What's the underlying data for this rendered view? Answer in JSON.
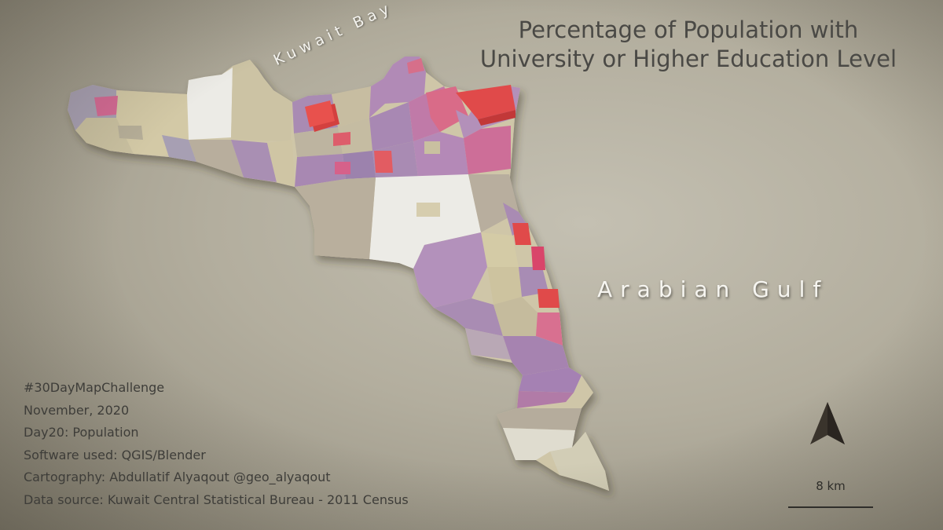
{
  "title": {
    "line1": "Percentage of Population with",
    "line2": "University or Higher Education Level"
  },
  "labels": {
    "bay": "Kuwait Bay",
    "gulf": "Arabian Gulf"
  },
  "credits": [
    "#30DayMapChallenge",
    "November, 2020",
    "Day20: Population",
    "Software used: QGIS/Blender",
    "Cartography: Abdullatif Alyaqout @geo_alyaqout",
    "Data source: Kuwait Central Statistical Bureau - 2011 Census"
  ],
  "scale": {
    "label": "8 km"
  },
  "icons": {
    "north": "north-arrow-icon"
  },
  "colors": {
    "background": "#b8b4a5",
    "highest": "#e04a4a",
    "high": "#d9738f",
    "mid": "#a98bb3",
    "low": "#c9c0a0",
    "lowest": "#ecebe6"
  }
}
